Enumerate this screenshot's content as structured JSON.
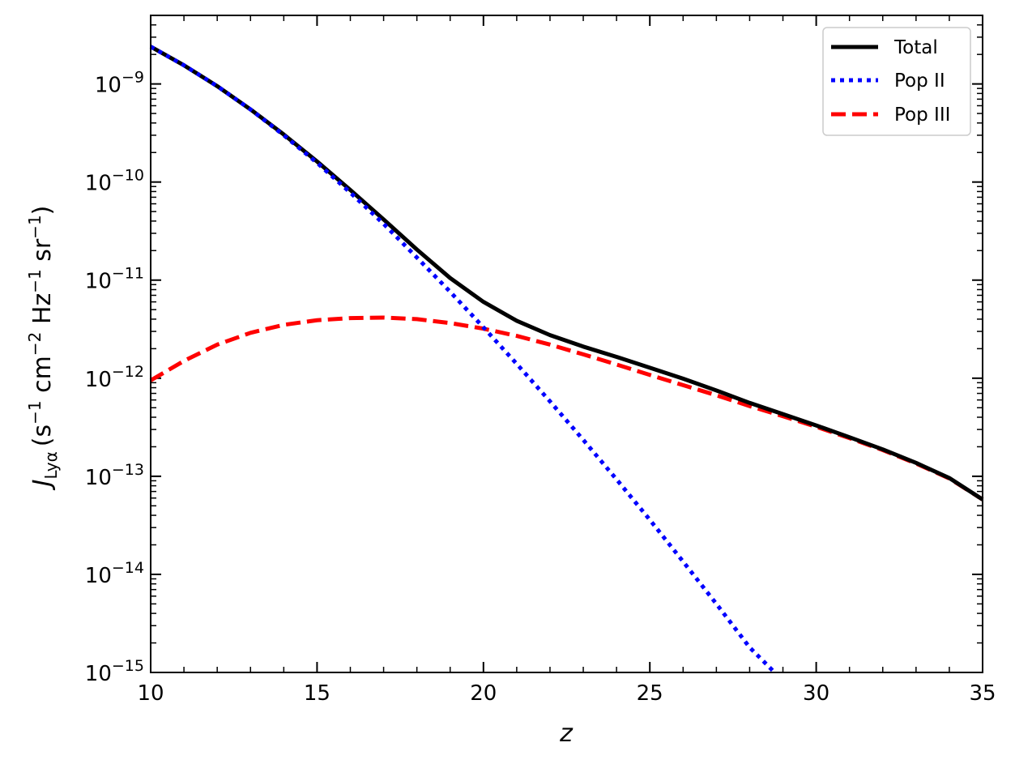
{
  "chart_data": {
    "type": "line",
    "title": "",
    "xlabel": "z",
    "ylabel": {
      "symbol": "J",
      "symbol_sub": "Lyα",
      "unit_open": "(s",
      "unit_s_exp": "−1",
      "unit_cm": " cm",
      "unit_cm_exp": "−2",
      "unit_hz": " Hz",
      "unit_hz_exp": "−1",
      "unit_sr": " sr",
      "unit_sr_exp": "−1",
      "unit_close": ")"
    },
    "xlim": [
      10,
      35
    ],
    "ylim": [
      1e-15,
      5e-09
    ],
    "yscale": "log",
    "grid": false,
    "legend_position": "top-right",
    "x_ticks": [
      10,
      15,
      20,
      25,
      30,
      35
    ],
    "x_tick_labels": [
      "10",
      "15",
      "20",
      "25",
      "30",
      "35"
    ],
    "y_ticks": [
      {
        "exp": -9,
        "base": "10",
        "power": "−9"
      },
      {
        "exp": -10,
        "base": "10",
        "power": "−10"
      },
      {
        "exp": -11,
        "base": "10",
        "power": "−11"
      },
      {
        "exp": -12,
        "base": "10",
        "power": "−12"
      },
      {
        "exp": -13,
        "base": "10",
        "power": "−13"
      },
      {
        "exp": -14,
        "base": "10",
        "power": "−14"
      },
      {
        "exp": -15,
        "base": "10",
        "power": "−15"
      }
    ],
    "series": [
      {
        "name": "Total",
        "color": "#000000",
        "style": "solid",
        "x": [
          10,
          11,
          12,
          13,
          14,
          15,
          16,
          17,
          18,
          19,
          20,
          21,
          22,
          23,
          24,
          25,
          26,
          27,
          28,
          29,
          30,
          31,
          32,
          33,
          34,
          35
        ],
        "y": [
          2.4e-09,
          1.55e-09,
          9.5e-10,
          5.5e-10,
          3.05e-10,
          1.62e-10,
          8.3e-11,
          4.15e-11,
          2.05e-11,
          1.05e-11,
          6e-12,
          3.85e-12,
          2.75e-12,
          2.1e-12,
          1.65e-12,
          1.28e-12,
          9.9e-13,
          7.5e-13,
          5.6e-13,
          4.3e-13,
          3.3e-13,
          2.5e-13,
          1.88e-13,
          1.37e-13,
          9.6e-14,
          5.8e-14
        ]
      },
      {
        "name": "Pop II",
        "color": "#0000ff",
        "style": "dotted",
        "x": [
          10,
          11,
          12,
          13,
          14,
          15,
          16,
          17,
          18,
          19,
          20,
          21,
          22,
          23,
          24,
          25,
          26,
          27,
          28,
          28.75
        ],
        "y": [
          2.4e-09,
          1.55e-09,
          9.5e-10,
          5.5e-10,
          3e-10,
          1.57e-10,
          7.8e-11,
          3.75e-11,
          1.7e-11,
          7.6e-12,
          3.3e-12,
          1.4e-12,
          5.8e-13,
          2.35e-13,
          9.3e-14,
          3.6e-14,
          1.35e-14,
          5e-15,
          1.8e-15,
          1e-15
        ]
      },
      {
        "name": "Pop III",
        "color": "#ff0000",
        "style": "dashed",
        "x": [
          10,
          11,
          12,
          13,
          14,
          15,
          16,
          17,
          18,
          19,
          20,
          21,
          22,
          23,
          24,
          25,
          26,
          27,
          28,
          29,
          30,
          31,
          32,
          33,
          34,
          35
        ],
        "y": [
          9.5e-13,
          1.5e-12,
          2.2e-12,
          2.9e-12,
          3.5e-12,
          3.9e-12,
          4.1e-12,
          4.15e-12,
          4e-12,
          3.65e-12,
          3.2e-12,
          2.7e-12,
          2.2e-12,
          1.75e-12,
          1.38e-12,
          1.08e-12,
          8.5e-13,
          6.7e-13,
          5.2e-13,
          4.1e-13,
          3.2e-13,
          2.45e-13,
          1.85e-13,
          1.35e-13,
          9.5e-14,
          5.8e-14
        ]
      }
    ]
  }
}
